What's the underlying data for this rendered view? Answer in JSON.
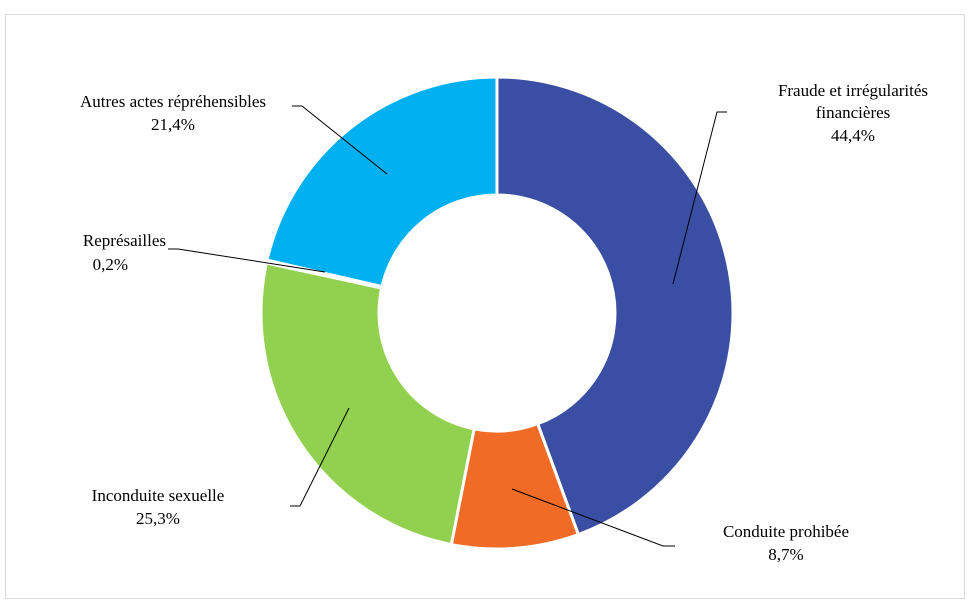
{
  "chart_data": {
    "type": "pie",
    "donut": true,
    "title": "",
    "categories": [
      "Fraude et irrégularités financières",
      "Conduite prohibée",
      "Inconduite sexuelle",
      "Représailles",
      "Autres actes répréhensibles"
    ],
    "values": [
      44.4,
      8.7,
      25.3,
      0.2,
      21.4
    ],
    "value_labels": [
      "44,4%",
      "8,7%",
      "25,3%",
      "0,2%",
      "21,4%"
    ],
    "colors": [
      "#3a4fa3",
      "#f06b26",
      "#92d050",
      "#00b0f0",
      "#00b0f0"
    ],
    "legend": "none",
    "label_lines": [
      [
        "Fraude et irrégularités",
        "financières",
        "44,4%"
      ],
      [
        "Conduite prohibée",
        "8,7%"
      ],
      [
        "Inconduite sexuelle",
        "25,3%"
      ],
      [
        "Représailles",
        "0,2%"
      ],
      [
        "Autres actes répréhensibles",
        "21,4%"
      ]
    ]
  }
}
